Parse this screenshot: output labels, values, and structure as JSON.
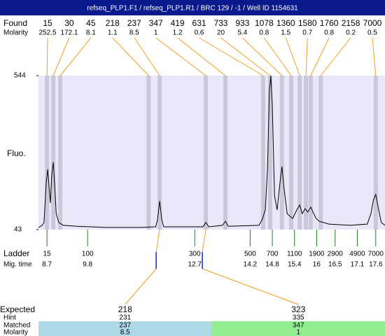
{
  "header": {
    "title": "refseq_PLP1.F1 / refseq_PLP1.R1 / BRC 129 / -1 / Well ID 1154631"
  },
  "chart_data": {
    "type": "electropherogram",
    "found_label": "Found",
    "molarity_label": "Molarity",
    "y_label": "Fluo.",
    "ladder_label": "Ladder",
    "time_label": "Mig. time",
    "xlim": [
      8.47,
      17.85
    ],
    "ylim": [
      43,
      544
    ],
    "yticks": [
      544,
      43
    ],
    "plot_color": "#e8e8f8",
    "band_color": "#c8c8d8",
    "link_color": "#f0a020",
    "ladder_color": "#208020",
    "peaks": [
      {
        "size": 15,
        "molarity": 252.5,
        "time": 8.7
      },
      {
        "size": 30,
        "molarity": 172.1,
        "time": 8.87
      },
      {
        "size": 45,
        "molarity": 8.1,
        "time": 9.06
      },
      {
        "size": 218,
        "molarity": 1.1,
        "time": 11.45
      },
      {
        "size": 237,
        "molarity": 8.5,
        "time": 11.75
      },
      {
        "size": 347,
        "molarity": 1,
        "time": 13.0
      },
      {
        "size": 419,
        "molarity": 1.2,
        "time": 13.53
      },
      {
        "size": 631,
        "molarity": 0.6,
        "time": 14.55
      },
      {
        "size": 733,
        "molarity": 20,
        "time": 14.74
      },
      {
        "size": 933,
        "molarity": 5.4,
        "time": 15.06
      },
      {
        "size": 1078,
        "molarity": 0.8,
        "time": 15.31
      },
      {
        "size": 1360,
        "molarity": 1.5,
        "time": 15.54
      },
      {
        "size": 1580,
        "molarity": 0.7,
        "time": 15.71
      },
      {
        "size": 1760,
        "molarity": 0.8,
        "time": 15.84
      },
      {
        "size": 2158,
        "molarity": 0.2,
        "time": 16.11
      },
      {
        "size": 7000,
        "molarity": 0.5,
        "time": 17.6
      }
    ],
    "trace": {
      "x": [
        8.47,
        8.57,
        8.62,
        8.68,
        8.72,
        8.76,
        8.79,
        8.83,
        8.87,
        8.91,
        8.95,
        9.02,
        9.14,
        9.51,
        10.27,
        11.22,
        11.64,
        11.69,
        11.75,
        11.81,
        11.86,
        12.92,
        13.0,
        13.08,
        13.45,
        13.53,
        13.61,
        14.44,
        14.53,
        14.61,
        14.67,
        14.72,
        14.76,
        14.8,
        14.86,
        14.93,
        15.01,
        15.06,
        15.12,
        15.2,
        15.35,
        15.46,
        15.54,
        15.61,
        15.69,
        15.76,
        15.84,
        15.92,
        15.99,
        16.07,
        16.33,
        16.9,
        17.37,
        17.47,
        17.54,
        17.6,
        17.68,
        17.75,
        17.85
      ],
      "y": [
        50,
        57,
        66,
        198,
        239,
        175,
        130,
        221,
        262,
        186,
        95,
        66,
        57,
        54,
        50,
        50,
        52,
        73,
        136,
        73,
        52,
        52,
        66,
        52,
        57,
        70,
        54,
        57,
        77,
        107,
        243,
        494,
        544,
        448,
        152,
        107,
        198,
        248,
        175,
        95,
        79,
        107,
        123,
        95,
        111,
        100,
        116,
        95,
        79,
        70,
        61,
        57,
        61,
        95,
        141,
        157,
        107,
        66,
        57
      ]
    },
    "ladder": {
      "sizes": [
        15,
        100,
        300,
        500,
        700,
        1100,
        1900,
        2900,
        4900,
        7000
      ],
      "times": [
        8.7,
        9.8,
        12.7,
        14.2,
        14.8,
        15.4,
        16,
        16.5,
        17.1,
        17.6
      ]
    }
  },
  "expected": {
    "labels": {
      "expected": "Expected",
      "hint": "Hint",
      "matched": "Matched",
      "molarity": "Molarity"
    },
    "colors": [
      "#add8e6",
      "#90ee90"
    ],
    "items": [
      {
        "size": 218,
        "hint": 231,
        "matched": 237,
        "molarity": 8.5
      },
      {
        "size": 323,
        "hint": 335,
        "matched": 347,
        "molarity": 1
      }
    ]
  }
}
